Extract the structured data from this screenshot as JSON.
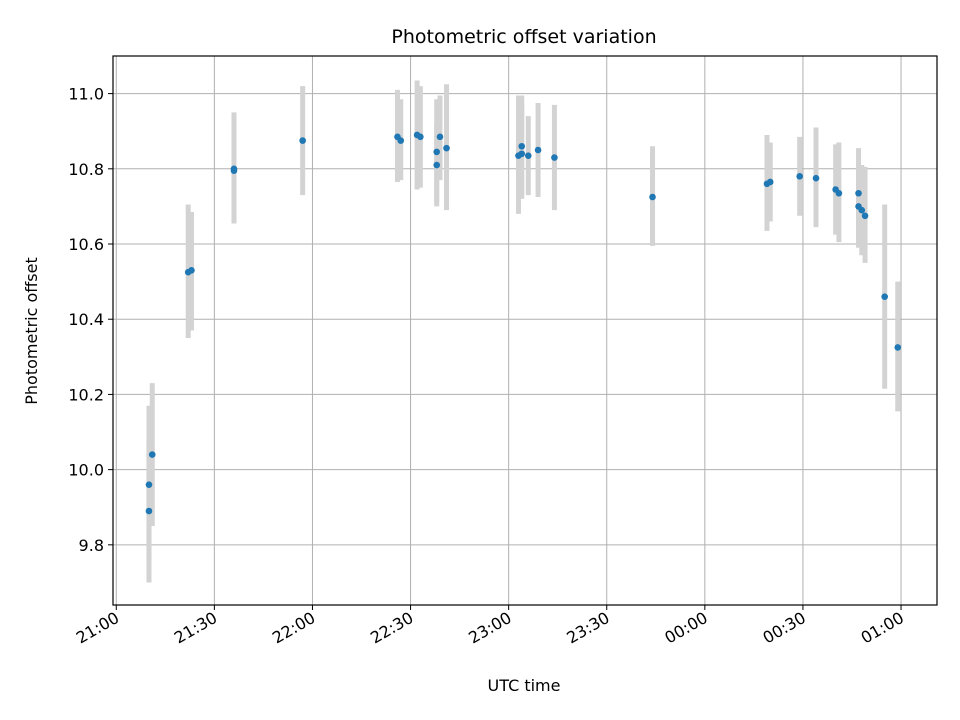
{
  "chart_data": {
    "type": "scatter",
    "title": "Photometric offset variation",
    "xlabel": "UTC time",
    "ylabel": "Photometric offset",
    "grid": true,
    "x_axis": {
      "kind": "time",
      "range": [
        "20:59",
        "01:11"
      ],
      "ticks": [
        "21:00",
        "21:30",
        "22:00",
        "22:30",
        "23:00",
        "23:30",
        "00:00",
        "00:30",
        "01:00"
      ]
    },
    "y_axis": {
      "range": [
        9.64,
        11.1
      ],
      "ticks": [
        "9.8",
        "10.0",
        "10.2",
        "10.4",
        "10.6",
        "10.8",
        "11.0"
      ]
    },
    "marker_color": "#1f77b4",
    "errorbar_color": "#d3d3d3",
    "points": [
      {
        "t": "21:10",
        "y": 9.89,
        "lo": 9.7,
        "hi": 10.08
      },
      {
        "t": "21:10",
        "y": 9.96,
        "lo": 9.76,
        "hi": 10.17
      },
      {
        "t": "21:11",
        "y": 10.04,
        "lo": 9.85,
        "hi": 10.23
      },
      {
        "t": "21:22",
        "y": 10.525,
        "lo": 10.35,
        "hi": 10.705
      },
      {
        "t": "21:23",
        "y": 10.53,
        "lo": 10.37,
        "hi": 10.685
      },
      {
        "t": "21:36",
        "y": 10.8,
        "lo": 10.655,
        "hi": 10.95
      },
      {
        "t": "21:36",
        "y": 10.795,
        "lo": 10.655,
        "hi": 10.94
      },
      {
        "t": "21:57",
        "y": 10.875,
        "lo": 10.73,
        "hi": 11.02
      },
      {
        "t": "22:26",
        "y": 10.885,
        "lo": 10.765,
        "hi": 11.01
      },
      {
        "t": "22:27",
        "y": 10.875,
        "lo": 10.77,
        "hi": 10.985
      },
      {
        "t": "22:32",
        "y": 10.89,
        "lo": 10.745,
        "hi": 11.035
      },
      {
        "t": "22:33",
        "y": 10.885,
        "lo": 10.75,
        "hi": 11.02
      },
      {
        "t": "22:38",
        "y": 10.845,
        "lo": 10.71,
        "hi": 10.985
      },
      {
        "t": "22:38",
        "y": 10.81,
        "lo": 10.7,
        "hi": 10.92
      },
      {
        "t": "22:39",
        "y": 10.885,
        "lo": 10.77,
        "hi": 10.995
      },
      {
        "t": "22:41",
        "y": 10.855,
        "lo": 10.69,
        "hi": 11.025
      },
      {
        "t": "23:03",
        "y": 10.835,
        "lo": 10.68,
        "hi": 10.995
      },
      {
        "t": "23:04",
        "y": 10.84,
        "lo": 10.72,
        "hi": 10.975
      },
      {
        "t": "23:04",
        "y": 10.86,
        "lo": 10.73,
        "hi": 10.995
      },
      {
        "t": "23:06",
        "y": 10.835,
        "lo": 10.73,
        "hi": 10.94
      },
      {
        "t": "23:09",
        "y": 10.85,
        "lo": 10.725,
        "hi": 10.975
      },
      {
        "t": "23:14",
        "y": 10.83,
        "lo": 10.69,
        "hi": 10.97
      },
      {
        "t": "23:44",
        "y": 10.725,
        "lo": 10.595,
        "hi": 10.86
      },
      {
        "t": "00:19",
        "y": 10.76,
        "lo": 10.635,
        "hi": 10.89
      },
      {
        "t": "00:20",
        "y": 10.765,
        "lo": 10.66,
        "hi": 10.87
      },
      {
        "t": "00:29",
        "y": 10.78,
        "lo": 10.675,
        "hi": 10.885
      },
      {
        "t": "00:34",
        "y": 10.775,
        "lo": 10.645,
        "hi": 10.91
      },
      {
        "t": "00:40",
        "y": 10.745,
        "lo": 10.625,
        "hi": 10.865
      },
      {
        "t": "00:41",
        "y": 10.735,
        "lo": 10.605,
        "hi": 10.87
      },
      {
        "t": "00:47",
        "y": 10.735,
        "lo": 10.615,
        "hi": 10.855
      },
      {
        "t": "00:47",
        "y": 10.7,
        "lo": 10.59,
        "hi": 10.815
      },
      {
        "t": "00:48",
        "y": 10.69,
        "lo": 10.57,
        "hi": 10.81
      },
      {
        "t": "00:49",
        "y": 10.675,
        "lo": 10.55,
        "hi": 10.805
      },
      {
        "t": "00:55",
        "y": 10.46,
        "lo": 10.215,
        "hi": 10.705
      },
      {
        "t": "00:59",
        "y": 10.325,
        "lo": 10.155,
        "hi": 10.5
      }
    ]
  }
}
